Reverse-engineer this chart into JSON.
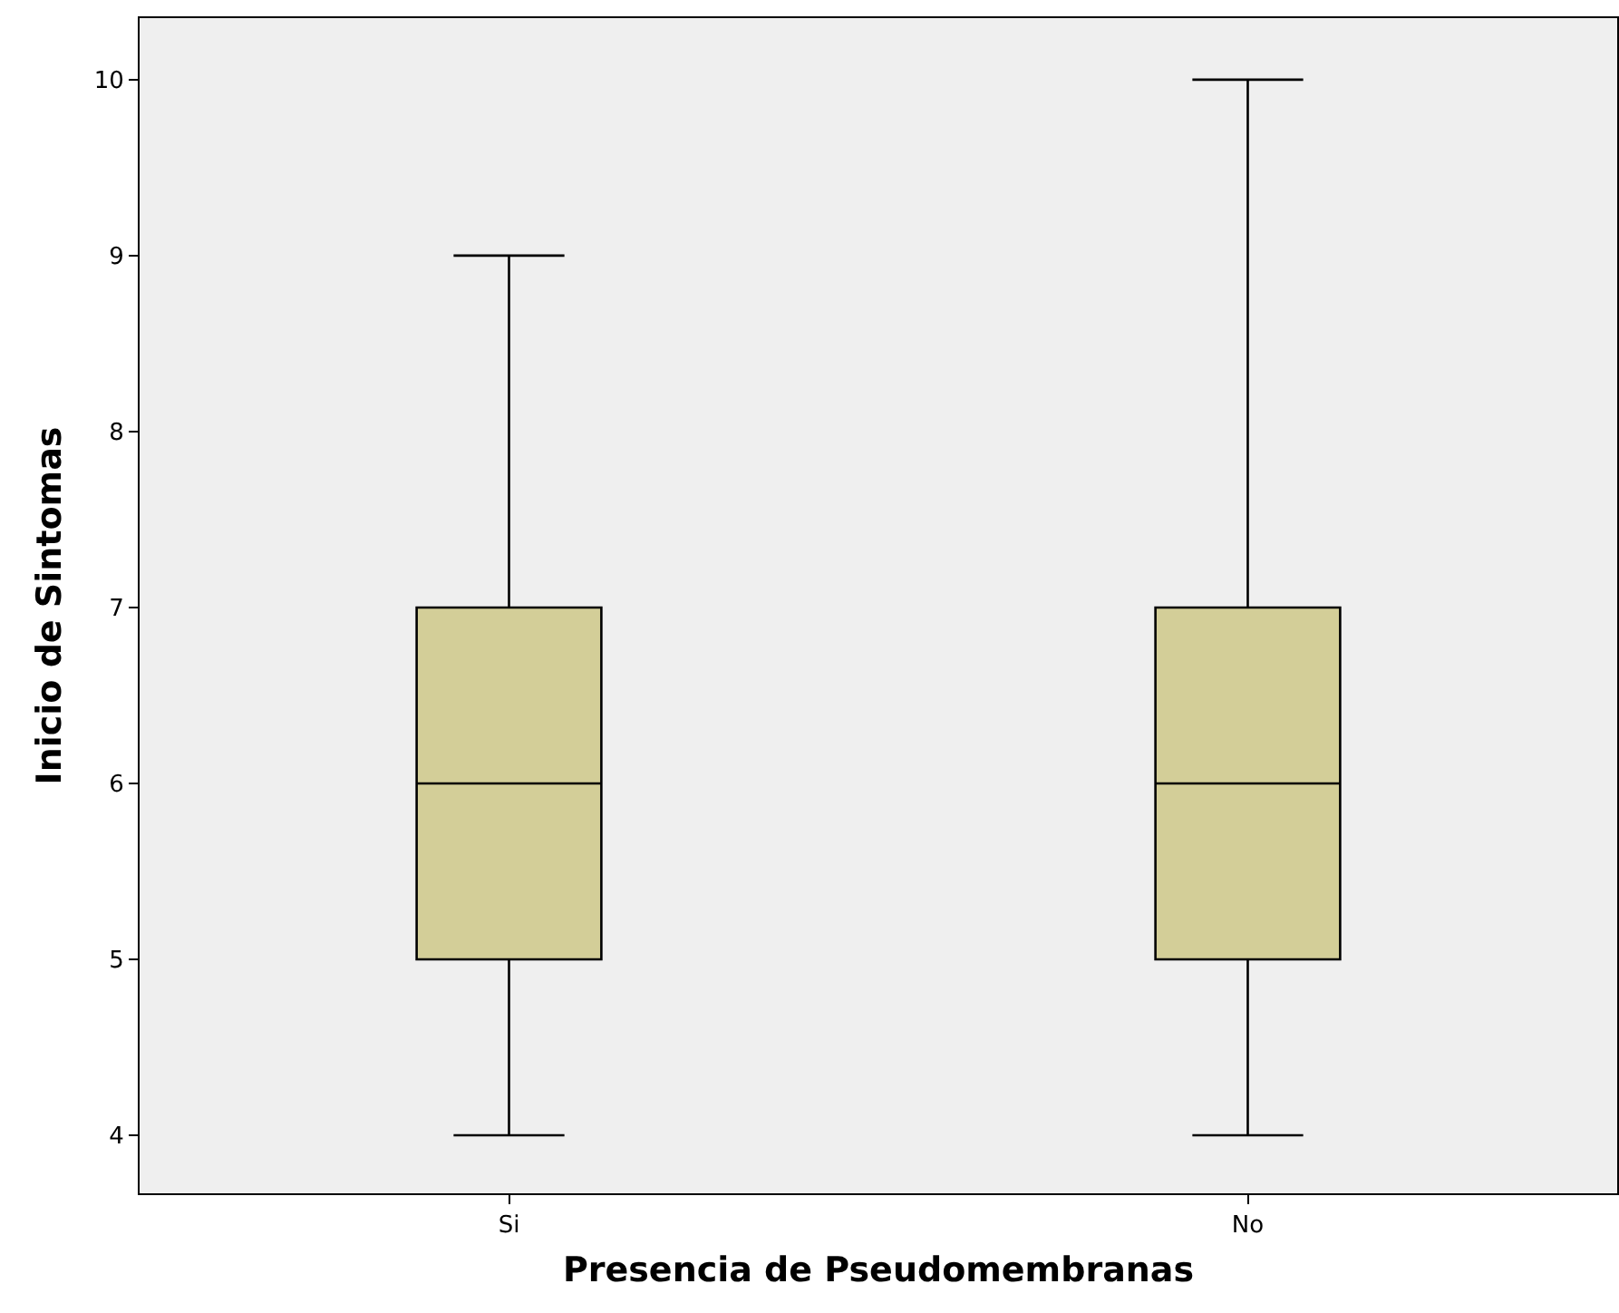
{
  "chart_data": {
    "type": "box",
    "xlabel": "Presencia de Pseudomembranas",
    "ylabel": "Inicio de Sintomas",
    "categories": [
      "Si",
      "No"
    ],
    "boxes": [
      {
        "low": 4,
        "q1": 5,
        "median": 6,
        "q3": 7,
        "high": 9
      },
      {
        "low": 4,
        "q1": 5,
        "median": 6,
        "q3": 7,
        "high": 10
      }
    ],
    "color": "#d3ce98",
    "ylim": [
      3.67,
      10.35
    ],
    "yticks": [
      4,
      5,
      6,
      7,
      8,
      9,
      10
    ],
    "grid": false
  }
}
